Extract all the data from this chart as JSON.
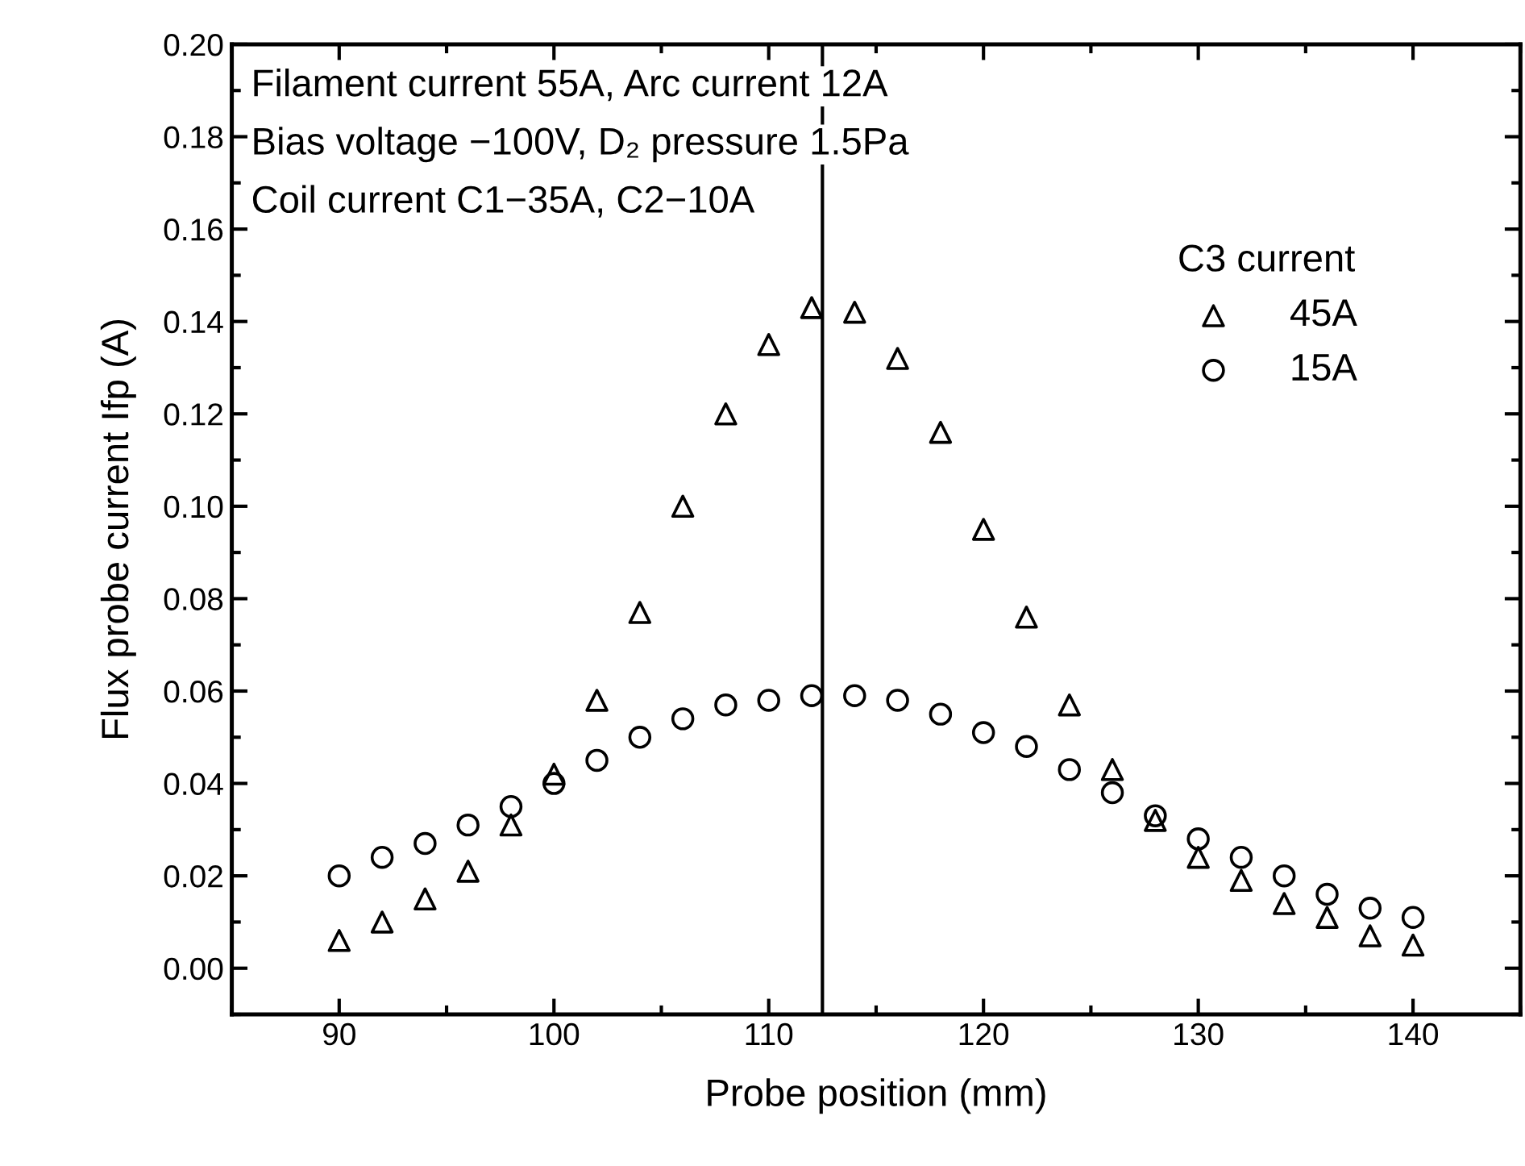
{
  "chart_data": {
    "type": "scatter",
    "xlabel": "Probe position (mm)",
    "ylabel": "Flux probe current Ifp (A)",
    "legend_title": "C3 current",
    "legend": "right",
    "grid": false,
    "annotations": [
      "Filament current 55A, Arc current 12A",
      "Bias voltage −100V, D₂ pressure 1.5Pa",
      "Coil current C1−35A, C2−10A"
    ],
    "x": [
      90,
      92,
      94,
      96,
      98,
      100,
      102,
      104,
      106,
      108,
      110,
      112,
      114,
      116,
      118,
      120,
      122,
      124,
      126,
      128,
      130,
      132,
      134,
      136,
      138,
      140
    ],
    "series": [
      {
        "name": "45A",
        "color": "#000000",
        "marker": "triangle",
        "values": [
          0.006,
          0.01,
          0.015,
          0.021,
          0.031,
          0.042,
          0.058,
          0.077,
          0.1,
          0.12,
          0.135,
          0.143,
          0.142,
          0.132,
          0.116,
          0.095,
          0.076,
          0.057,
          0.043,
          0.032,
          0.024,
          0.019,
          0.014,
          0.011,
          0.007,
          0.005
        ]
      },
      {
        "name": "15A",
        "color": "#000000",
        "marker": "circle",
        "values": [
          0.02,
          0.024,
          0.027,
          0.031,
          0.035,
          0.04,
          0.045,
          0.05,
          0.054,
          0.057,
          0.058,
          0.059,
          0.059,
          0.058,
          0.055,
          0.051,
          0.048,
          0.043,
          0.038,
          0.033,
          0.028,
          0.024,
          0.02,
          0.016,
          0.013,
          0.011
        ]
      }
    ],
    "ref_lines": [
      {
        "axis": "x",
        "value": 112.5,
        "color": "#000000",
        "line_style": "solid"
      }
    ],
    "xlim": [
      85,
      145
    ],
    "xticks": [
      90,
      100,
      110,
      120,
      130,
      140
    ],
    "ylim": [
      -0.01,
      0.2
    ],
    "yticks": [
      {
        "value": 0,
        "label": "0.00"
      },
      {
        "value": 0.02,
        "label": "0.02"
      },
      {
        "value": 0.04,
        "label": "0.04"
      },
      {
        "value": 0.06,
        "label": "0.06"
      },
      {
        "value": 0.08,
        "label": "0.08"
      },
      {
        "value": 0.1,
        "label": "0.10"
      },
      {
        "value": 0.12,
        "label": "0.12"
      },
      {
        "value": 0.14,
        "label": "0.14"
      },
      {
        "value": 0.16,
        "label": "0.16"
      },
      {
        "value": 0.18,
        "label": "0.18"
      },
      {
        "value": 0.2,
        "label": "0.20"
      }
    ]
  }
}
